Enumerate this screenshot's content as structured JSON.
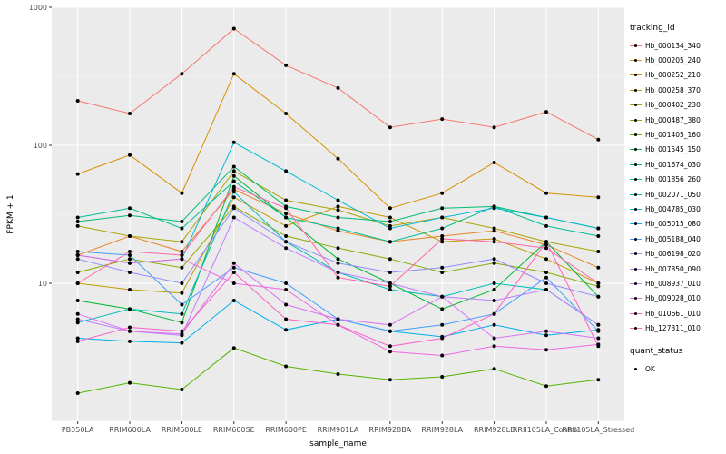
{
  "figure": {
    "background": "#FFFFFF",
    "panel_background": "#EBEBEB",
    "grid_color": "#FFFFFF",
    "tick_label_color": "#4D4D4D",
    "axis_title_color": "#000000"
  },
  "chart_data": {
    "type": "line",
    "title": "",
    "xlabel": "sample_name",
    "ylabel": "FPKM + 1",
    "y_scale": "log10",
    "ylim": [
      1,
      1000
    ],
    "y_ticks": [
      10,
      100,
      1000
    ],
    "y_tick_labels": [
      "10",
      "100",
      "1000"
    ],
    "grid": true,
    "legend_position": "right",
    "point_color": "#000000",
    "categories": [
      "PB350LA",
      "RRIM600LA",
      "RRIM600LE",
      "RRIM600SE",
      "RRIM600PE",
      "RRIM901LA",
      "RRIM928BA",
      "RRIM928LA",
      "RRIM928LE",
      "RRII105LA_Control",
      "RRII105LA_Stressed"
    ],
    "series": [
      {
        "name": "Hb_000134_340",
        "color": "#F8766D",
        "values": [
          210,
          170,
          330,
          700,
          380,
          260,
          135,
          155,
          135,
          175,
          110
        ]
      },
      {
        "name": "Hb_000205_240",
        "color": "#E88526",
        "values": [
          16,
          22,
          17,
          48,
          32,
          24,
          20,
          22,
          24,
          19,
          13
        ]
      },
      {
        "name": "Hb_000252_210",
        "color": "#D89000",
        "values": [
          62,
          85,
          45,
          330,
          170,
          80,
          35,
          45,
          75,
          45,
          42
        ]
      },
      {
        "name": "Hb_000258_370",
        "color": "#C39B00",
        "values": [
          10,
          9,
          8.5,
          42,
          26,
          36,
          30,
          20,
          21,
          15,
          10
        ]
      },
      {
        "name": "Hb_000402_230",
        "color": "#A9A400",
        "values": [
          26,
          22,
          20,
          65,
          40,
          34,
          26,
          30,
          25,
          20,
          17
        ]
      },
      {
        "name": "Hb_000487_380",
        "color": "#87AC00",
        "values": [
          12,
          15,
          13,
          36,
          22,
          18,
          15,
          12,
          14,
          12,
          9.5
        ]
      },
      {
        "name": "Hb_001405_160",
        "color": "#54B400",
        "values": [
          1.6,
          1.9,
          1.7,
          3.4,
          2.5,
          2.2,
          2.0,
          2.1,
          2.4,
          1.8,
          2.0
        ]
      },
      {
        "name": "Hb_001545_150",
        "color": "#00B934",
        "values": [
          7.5,
          6.5,
          5.2,
          60,
          30,
          15,
          10,
          6.5,
          9,
          20,
          8
        ]
      },
      {
        "name": "Hb_001674_030",
        "color": "#00BC6E",
        "values": [
          28,
          31,
          28,
          70,
          36,
          30,
          28,
          35,
          36,
          30,
          25
        ]
      },
      {
        "name": "Hb_001856_260",
        "color": "#00BE94",
        "values": [
          30,
          35,
          25,
          55,
          30,
          25,
          20,
          25,
          36,
          26,
          22
        ]
      },
      {
        "name": "Hb_002071_050",
        "color": "#00BDB6",
        "values": [
          5.2,
          6.5,
          6,
          46,
          20,
          12,
          9,
          8,
          10,
          9,
          5
        ]
      },
      {
        "name": "Hb_004785_030",
        "color": "#00B8D4",
        "values": [
          16,
          14,
          15,
          105,
          65,
          40,
          25,
          30,
          35,
          30,
          25
        ]
      },
      {
        "name": "Hb_005015_080",
        "color": "#00AEEC",
        "values": [
          4,
          3.8,
          3.7,
          7.5,
          4.6,
          5.5,
          4.5,
          4.1,
          5,
          4.2,
          4.6
        ]
      },
      {
        "name": "Hb_005188_040",
        "color": "#419CFF",
        "values": [
          17,
          16,
          7,
          13,
          10,
          5.5,
          4.5,
          5,
          6,
          11,
          4.5
        ]
      },
      {
        "name": "Hb_006198_020",
        "color": "#8F8CFF",
        "values": [
          15,
          12,
          10,
          35,
          20,
          14,
          12,
          13,
          15,
          10,
          8
        ]
      },
      {
        "name": "Hb_007850_090",
        "color": "#BC7EFF",
        "values": [
          5.5,
          4.5,
          4.2,
          30,
          18,
          12,
          10,
          8,
          7.5,
          9,
          5
        ]
      },
      {
        "name": "Hb_008937_010",
        "color": "#DB72F5",
        "values": [
          6,
          4.5,
          4.3,
          14,
          7,
          5.5,
          5,
          8,
          4,
          4.5,
          4
        ]
      },
      {
        "name": "Hb_009028_010",
        "color": "#EF67E3",
        "values": [
          16,
          14,
          15,
          10,
          9,
          5,
          3.2,
          3,
          3.5,
          3.3,
          3.6
        ]
      },
      {
        "name": "Hb_010661_010",
        "color": "#FB61C8",
        "values": [
          3.8,
          4.8,
          4.5,
          12,
          5.5,
          5,
          3.5,
          4,
          6,
          20,
          3.5
        ]
      },
      {
        "name": "Hb_127311_010",
        "color": "#FF65AA",
        "values": [
          10,
          17,
          16,
          50,
          35,
          11,
          9.5,
          21,
          20,
          18,
          10
        ]
      }
    ]
  },
  "legend": {
    "tracking_title": "tracking_id",
    "quant_title": "quant_status",
    "quant_items": [
      {
        "label": "OK"
      }
    ]
  }
}
